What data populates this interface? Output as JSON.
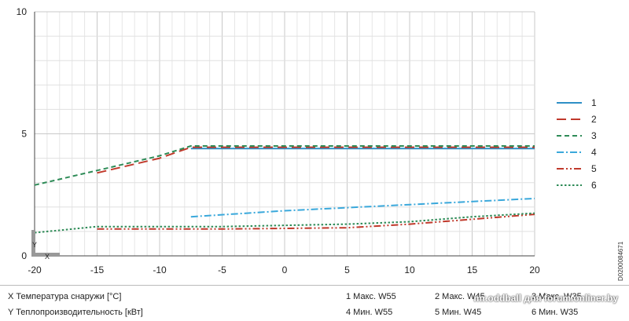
{
  "chart_data": {
    "type": "line",
    "xlim": [
      -20,
      20
    ],
    "ylim": [
      0,
      10
    ],
    "x_ticks": [
      "-20",
      "-15",
      "-10",
      "-5",
      "0",
      "5",
      "10",
      "15",
      "20"
    ],
    "y_ticks": [
      "0",
      "5",
      "10"
    ],
    "grid": true,
    "legend_position": "right",
    "series": [
      {
        "name": "1",
        "color": "#2E8FC6",
        "dash": "solid",
        "points": [
          [
            -7.5,
            4.4
          ],
          [
            20,
            4.4
          ]
        ]
      },
      {
        "name": "2",
        "color": "#C0392B",
        "dash": "longdash",
        "points": [
          [
            -15,
            3.4
          ],
          [
            -10,
            4.0
          ],
          [
            -7.5,
            4.45
          ],
          [
            20,
            4.45
          ]
        ]
      },
      {
        "name": "3",
        "color": "#2E8B57",
        "dash": "dash",
        "points": [
          [
            -20,
            2.9
          ],
          [
            -15,
            3.5
          ],
          [
            -10,
            4.1
          ],
          [
            -7.5,
            4.5
          ],
          [
            20,
            4.5
          ]
        ]
      },
      {
        "name": "4",
        "color": "#3AA8DB",
        "dash": "dashdot",
        "points": [
          [
            -7.5,
            1.6
          ],
          [
            0,
            1.85
          ],
          [
            10,
            2.1
          ],
          [
            20,
            2.35
          ]
        ]
      },
      {
        "name": "5",
        "color": "#C0392B",
        "dash": "dashdotdot",
        "points": [
          [
            -15,
            1.1
          ],
          [
            -5,
            1.1
          ],
          [
            5,
            1.15
          ],
          [
            10,
            1.3
          ],
          [
            15,
            1.5
          ],
          [
            20,
            1.7
          ]
        ]
      },
      {
        "name": "6",
        "color": "#2E8B57",
        "dash": "dot",
        "points": [
          [
            -20,
            0.95
          ],
          [
            -15,
            1.2
          ],
          [
            -5,
            1.2
          ],
          [
            5,
            1.3
          ],
          [
            10,
            1.4
          ],
          [
            15,
            1.6
          ],
          [
            20,
            1.75
          ]
        ]
      }
    ]
  },
  "axis_tag": {
    "y": "Y",
    "x": "X"
  },
  "side_code": "D0200084671",
  "footer": {
    "x_label": "X Температура снаружи  [°C]",
    "y_label": "Y Теплопроизводительность [кВт]",
    "legend_items": [
      "1 Макс. W55",
      "2 Макс. W45",
      "3 Макс. W35",
      "4 Мин. W55",
      "5 Мин.  W45",
      "6 Мин. W35"
    ],
    "watermark": "mr.oddball для forum.onliner.by"
  }
}
